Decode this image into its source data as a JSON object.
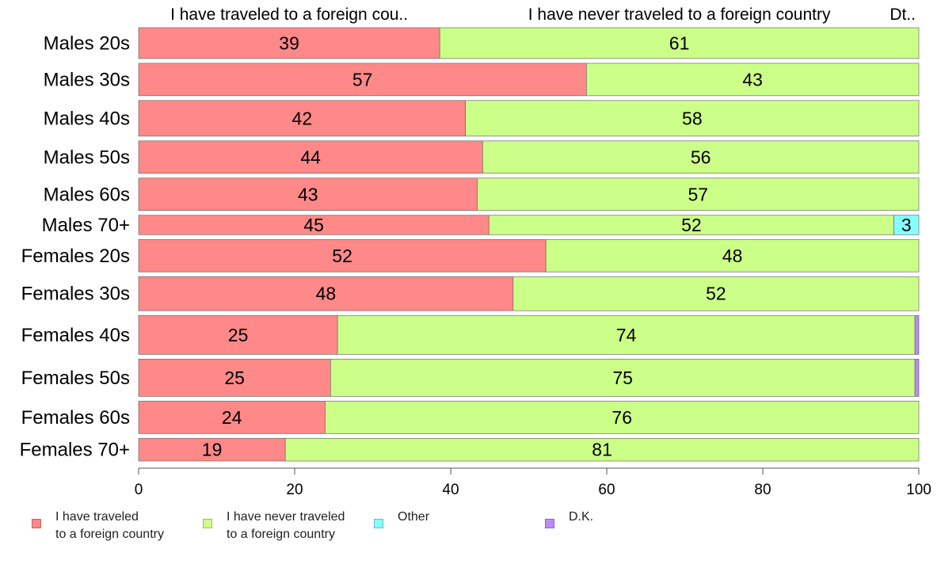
{
  "chart_data": {
    "type": "bar",
    "orientation": "horizontal",
    "stacked": true,
    "categories": [
      "Males 20s",
      "Males 30s",
      "Males 40s",
      "Males 50s",
      "Males 60s",
      "Males 70+",
      "Females 20s",
      "Females 30s",
      "Females 40s",
      "Females 50s",
      "Females 60s",
      "Females 70+"
    ],
    "series": [
      {
        "name": "I have traveled to a foreign country",
        "legend_label": "I have traveled\nto a foreign country",
        "header_label": "I have traveled to a foreign cou..",
        "color": "#ff8888",
        "values": [
          38.6,
          57.4,
          41.9,
          44.1,
          43.4,
          44.9,
          52.2,
          48.0,
          25.5,
          24.6,
          23.9,
          18.8
        ],
        "labels": [
          "39",
          "57",
          "42",
          "44",
          "43",
          "45",
          "52",
          "48",
          "25",
          "25",
          "24",
          "19"
        ]
      },
      {
        "name": "I have never traveled to a foreign country",
        "legend_label": "I have never traveled\nto a foreign country",
        "header_label": "I have never traveled to a foreign country",
        "color": "#ccff88",
        "values": [
          61.4,
          42.6,
          58.1,
          55.9,
          56.6,
          51.9,
          47.8,
          52.0,
          74.0,
          74.9,
          76.1,
          81.2
        ],
        "labels": [
          "61",
          "43",
          "58",
          "56",
          "57",
          "52",
          "48",
          "52",
          "74",
          "75",
          "76",
          "81"
        ]
      },
      {
        "name": "Other",
        "legend_label": "Other",
        "header_label": "",
        "color": "#88ffff",
        "values": [
          0,
          0,
          0,
          0,
          0,
          3.2,
          0,
          0,
          0,
          0,
          0,
          0
        ],
        "labels": [
          "",
          "",
          "",
          "",
          "",
          "3",
          "",
          "",
          "",
          "",
          "",
          ""
        ]
      },
      {
        "name": "D.K.",
        "legend_label": "D.K.",
        "header_label": "Dt..",
        "color": "#bb88ff",
        "values": [
          0,
          0,
          0,
          0,
          0,
          0,
          0,
          0,
          0.5,
          0.5,
          0,
          0
        ],
        "labels": [
          "",
          "",
          "",
          "",
          "",
          "",
          "",
          "",
          "",
          "",
          "",
          ""
        ]
      }
    ],
    "row_weights": [
      38,
      40,
      44,
      40,
      40,
      24,
      40,
      42,
      48,
      46,
      40,
      28
    ],
    "xlim": [
      0,
      100
    ],
    "xticks": [
      0,
      20,
      40,
      60,
      80,
      100
    ],
    "grid": false,
    "legend_position": "bottom-left"
  }
}
